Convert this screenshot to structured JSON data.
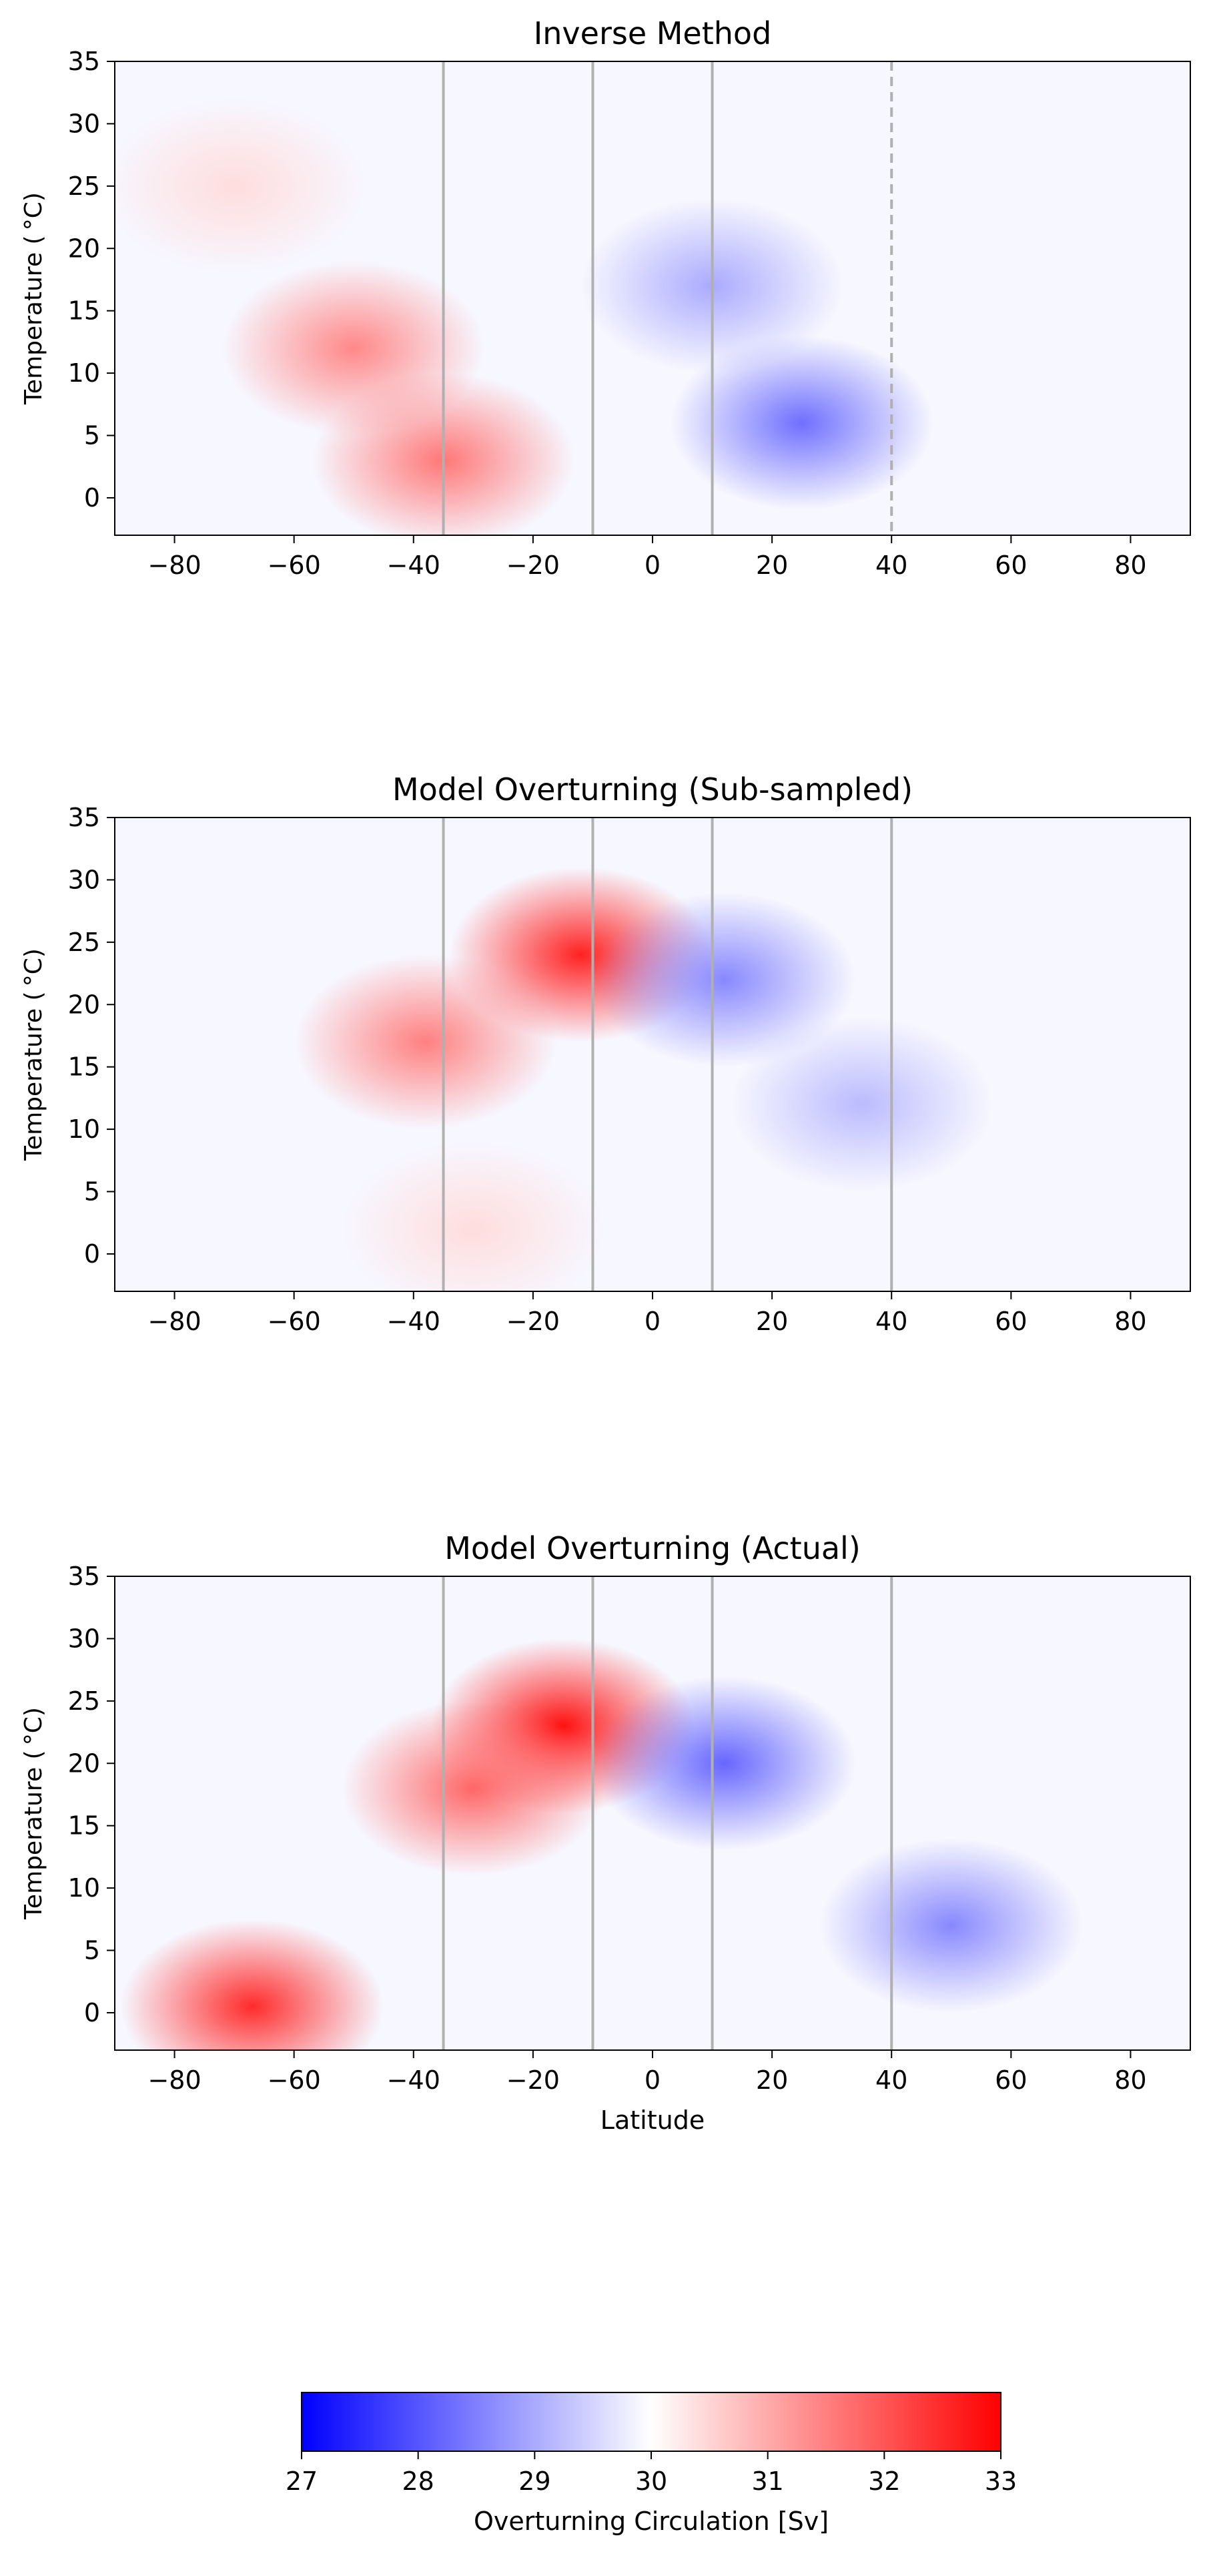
{
  "chart_data": [
    {
      "type": "heatmap",
      "title": "Inverse Method",
      "xlabel": "",
      "ylabel": "Temperature ( °C)",
      "xlim": [
        -90,
        90
      ],
      "ylim": [
        -3,
        35
      ],
      "xticks": [
        -80,
        -60,
        -40,
        -20,
        0,
        20,
        40,
        60,
        80
      ],
      "xtick_labels": [
        "−80",
        "−60",
        "−40",
        "−20",
        "0",
        "20",
        "40",
        "60",
        "80"
      ],
      "yticks": [
        0,
        5,
        10,
        15,
        20,
        25,
        30,
        35
      ],
      "ytick_labels": [
        "0",
        "5",
        "10",
        "15",
        "20",
        "25",
        "30",
        "35"
      ],
      "section_lines": [
        {
          "lat": -35,
          "style": "solid"
        },
        {
          "lat": -10,
          "style": "solid"
        },
        {
          "lat": 10,
          "style": "solid"
        },
        {
          "lat": 40,
          "style": "dashed"
        }
      ],
      "blobs": [
        {
          "lon": -50,
          "lat": 12,
          "value": 31.4
        },
        {
          "lon": -35,
          "lat": 3,
          "value": 31.6
        },
        {
          "lon": 25,
          "lat": 6,
          "value": 28.3
        },
        {
          "lon": 10,
          "lat": 17,
          "value": 29.0
        },
        {
          "lon": -70,
          "lat": 25,
          "value": 30.4
        }
      ]
    },
    {
      "type": "heatmap",
      "title": "Model Overturning (Sub-sampled)",
      "xlabel": "",
      "ylabel": "Temperature ( °C)",
      "xlim": [
        -90,
        90
      ],
      "ylim": [
        -3,
        35
      ],
      "xticks": [
        -80,
        -60,
        -40,
        -20,
        0,
        20,
        40,
        60,
        80
      ],
      "xtick_labels": [
        "−80",
        "−60",
        "−40",
        "−20",
        "0",
        "20",
        "40",
        "60",
        "80"
      ],
      "yticks": [
        0,
        5,
        10,
        15,
        20,
        25,
        30,
        35
      ],
      "ytick_labels": [
        "0",
        "5",
        "10",
        "15",
        "20",
        "25",
        "30",
        "35"
      ],
      "section_lines": [
        {
          "lat": -35,
          "style": "solid"
        },
        {
          "lat": -10,
          "style": "solid"
        },
        {
          "lat": 10,
          "style": "solid"
        },
        {
          "lat": 40,
          "style": "solid"
        }
      ],
      "blobs": [
        {
          "lon": -12,
          "lat": 24,
          "value": 32.6
        },
        {
          "lon": -38,
          "lat": 17,
          "value": 31.5
        },
        {
          "lon": 12,
          "lat": 22,
          "value": 28.6
        },
        {
          "lon": 35,
          "lat": 12,
          "value": 29.2
        },
        {
          "lon": -30,
          "lat": 2,
          "value": 30.4
        }
      ]
    },
    {
      "type": "heatmap",
      "title": "Model Overturning (Actual)",
      "xlabel": "Latitude",
      "ylabel": "Temperature ( °C)",
      "xlim": [
        -90,
        90
      ],
      "ylim": [
        -3,
        35
      ],
      "xticks": [
        -80,
        -60,
        -40,
        -20,
        0,
        20,
        40,
        60,
        80
      ],
      "xtick_labels": [
        "−80",
        "−60",
        "−40",
        "−20",
        "0",
        "20",
        "40",
        "60",
        "80"
      ],
      "yticks": [
        0,
        5,
        10,
        15,
        20,
        25,
        30,
        35
      ],
      "ytick_labels": [
        "0",
        "5",
        "10",
        "15",
        "20",
        "25",
        "30",
        "35"
      ],
      "section_lines": [
        {
          "lat": -35,
          "style": "solid"
        },
        {
          "lat": -10,
          "style": "solid"
        },
        {
          "lat": 10,
          "style": "solid"
        },
        {
          "lat": 40,
          "style": "solid"
        }
      ],
      "blobs": [
        {
          "lon": -15,
          "lat": 23,
          "value": 32.8
        },
        {
          "lon": -30,
          "lat": 18,
          "value": 31.8
        },
        {
          "lon": 12,
          "lat": 20,
          "value": 28.2
        },
        {
          "lon": 50,
          "lat": 7,
          "value": 28.6
        },
        {
          "lon": -67,
          "lat": 0.5,
          "value": 32.5
        }
      ]
    }
  ],
  "colorbar": {
    "label": "Overturning Circulation [Sv]",
    "min": 27,
    "max": 33,
    "ticks": [
      27,
      28,
      29,
      30,
      31,
      32,
      33
    ],
    "tick_labels": [
      "27",
      "28",
      "29",
      "30",
      "31",
      "32",
      "33"
    ],
    "colormap": "bwr",
    "colors": {
      "low": "#0000ff",
      "mid": "#ffffff",
      "high": "#ff0000"
    }
  },
  "colors": {
    "section_line": "#b0b0b0",
    "contour": "#000000",
    "axis": "#000000"
  }
}
